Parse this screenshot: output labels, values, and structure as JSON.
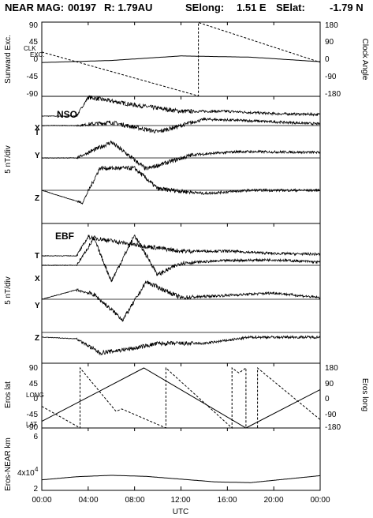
{
  "header": {
    "mission": "NEAR MAG:",
    "day": "00197",
    "r": "R: 1.79AU",
    "selong_label": "SElong:",
    "selong": "1.51 E",
    "selat_label": "SElat:",
    "selat": "-1.79 N"
  },
  "x_axis": {
    "label": "UTC",
    "ticks": [
      "00:00",
      "04:00",
      "08:00",
      "12:00",
      "16:00",
      "20:00",
      "00:00"
    ]
  },
  "panels": {
    "top": {
      "left_label": "Sunward Exc.",
      "right_label": "Clock Angle",
      "left_ticks": [
        "90",
        "45",
        "0",
        "-45",
        "-90"
      ],
      "right_ticks": [
        "180",
        "90",
        "0",
        "-90",
        "-180"
      ],
      "curve_labels": [
        "CLK",
        "EXC."
      ]
    },
    "nso": {
      "title": "NSO",
      "ylabel": "5 nT/div",
      "traces": [
        "T",
        "X",
        "Y",
        "Z"
      ]
    },
    "ebf": {
      "title": "EBF",
      "ylabel": "5 nT/div",
      "traces": [
        "T",
        "X",
        "Y",
        "Z"
      ]
    },
    "eros": {
      "left_label": "Eros lat",
      "right_label": "Eros long",
      "left_ticks": [
        "90",
        "45",
        "0",
        "-45",
        "-90"
      ],
      "right_ticks": [
        "180",
        "90",
        "0",
        "-90",
        "-180"
      ],
      "curve_labels": [
        "LONG",
        "LAT"
      ]
    },
    "dist": {
      "left_label": "Eros-NEAR km",
      "tick_6": "6",
      "tick_4": "4x10",
      "tick_4_exp": "4",
      "tick_2": "2"
    }
  },
  "chart_data": [
    {
      "type": "line",
      "title": "",
      "xlabel": "UTC",
      "ylabel": "Sunward Exc.",
      "ylabel_right": "Clock Angle",
      "x_range": [
        "00:00",
        "24:00"
      ],
      "ylim": [
        -90,
        90
      ],
      "ylim_right": [
        -180,
        180
      ],
      "series": [
        {
          "name": "CLK",
          "x": [
            0,
            13.5,
            13.5,
            24
          ],
          "values": [
            35,
            -178,
            178,
            -15
          ]
        },
        {
          "name": "EXC.",
          "x": [
            0,
            6,
            12,
            18,
            24
          ],
          "values": [
            -8,
            -3,
            8,
            5,
            -6
          ]
        }
      ]
    },
    {
      "type": "line",
      "title": "NSO",
      "ylabel": "5 nT/div",
      "traces": [
        {
          "name": "T",
          "x": [
            0,
            3,
            4,
            8,
            12,
            16,
            20,
            24
          ],
          "values": [
            0,
            0,
            2.4,
            1.4,
            0.6,
            0.6,
            0.3,
            0.2
          ]
        },
        {
          "name": "X",
          "x": [
            0,
            3,
            6,
            10,
            14,
            18,
            24
          ],
          "values": [
            0,
            0,
            0.4,
            -0.8,
            0.8,
            0.6,
            0.2
          ]
        },
        {
          "name": "Y",
          "x": [
            0,
            3,
            6,
            9,
            13,
            17,
            24
          ],
          "values": [
            0,
            0,
            2.0,
            -1.4,
            0.4,
            0.8,
            0.7
          ]
        },
        {
          "name": "Z",
          "x": [
            0,
            3.5,
            5,
            8,
            10,
            14,
            18,
            24
          ],
          "values": [
            0,
            -1.6,
            2.8,
            2.8,
            0.2,
            -0.4,
            0,
            0
          ]
        }
      ]
    },
    {
      "type": "line",
      "title": "EBF",
      "ylabel": "5 nT/div",
      "traces": [
        {
          "name": "T",
          "x": [
            0,
            3,
            4,
            8,
            12,
            16,
            20,
            24
          ],
          "values": [
            0,
            0,
            2.4,
            1.4,
            0.6,
            0.6,
            0.3,
            0.2
          ]
        },
        {
          "name": "X",
          "x": [
            0,
            3,
            4.5,
            6,
            8,
            10,
            12,
            16,
            20,
            24
          ],
          "values": [
            0,
            0,
            3.4,
            -2.0,
            3.8,
            -1.2,
            0.3,
            0.6,
            0.7,
            0.4
          ]
        },
        {
          "name": "Y",
          "x": [
            0,
            3,
            4.5,
            7,
            9,
            12,
            16,
            20,
            24
          ],
          "values": [
            0,
            1.2,
            0.6,
            -2.6,
            2.2,
            0.2,
            0.5,
            0.8,
            0.2
          ]
        },
        {
          "name": "Z",
          "x": [
            0,
            3,
            5,
            8,
            10,
            14,
            18,
            24
          ],
          "values": [
            0,
            -0.2,
            -2.0,
            -1.4,
            -0.8,
            -0.8,
            0,
            0
          ]
        }
      ]
    },
    {
      "type": "line",
      "title": "",
      "xlabel": "UTC",
      "ylabel": "Eros lat",
      "ylabel_right": "Eros long",
      "ylim": [
        -90,
        90
      ],
      "ylim_right": [
        -180,
        180
      ],
      "series": [
        {
          "name": "LONG",
          "x": [
            0,
            8.8,
            17.6,
            24
          ],
          "values": [
            -140,
            180,
            -180,
            50
          ]
        },
        {
          "name": "LAT",
          "x": [
            0,
            3.3,
            3.3,
            6.4,
            6.9,
            10.7,
            10.7,
            16.4,
            16.4,
            17,
            17.6,
            17.6,
            18.6,
            18.6,
            24
          ],
          "values": [
            -25,
            -90,
            90,
            -40,
            -33,
            -90,
            90,
            -90,
            90,
            75,
            90,
            -90,
            -90,
            90,
            -65
          ]
        }
      ]
    },
    {
      "type": "line",
      "title": "",
      "xlabel": "UTC",
      "ylabel": "Eros-NEAR km",
      "series": [
        {
          "name": "",
          "x": [
            0,
            3,
            6,
            9,
            12,
            15,
            18,
            21,
            24
          ],
          "values": [
            3.56,
            3.74,
            3.82,
            3.76,
            3.6,
            3.44,
            3.4,
            3.6,
            3.8
          ]
        }
      ]
    }
  ]
}
